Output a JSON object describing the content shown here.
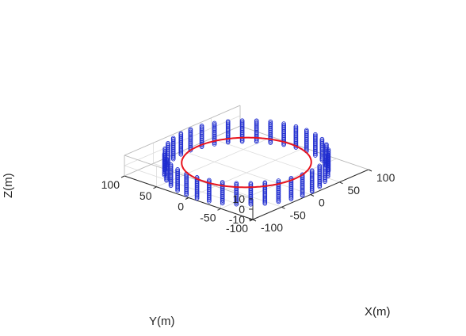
{
  "chart_data": {
    "type": "scatter3d",
    "title": "",
    "grid": true,
    "axes": {
      "x": {
        "label": "X(m)",
        "range": [
          -100,
          100
        ],
        "ticks": [
          -100,
          -50,
          0,
          50,
          100
        ]
      },
      "y": {
        "label": "Y(m)",
        "range": [
          -100,
          100
        ],
        "ticks": [
          -100,
          -50,
          0,
          50,
          100
        ]
      },
      "z": {
        "label": "Z(m)",
        "range": [
          -10,
          10
        ],
        "ticks": [
          -10,
          0,
          10
        ]
      }
    },
    "circle": {
      "color": "#e8141e",
      "center": [
        0,
        0,
        0
      ],
      "radius": 75,
      "z": 0
    },
    "columns": {
      "color": "#1f2ccf",
      "radius": 95,
      "count": 36,
      "z_min": -10,
      "z_max": 10,
      "z_step": 1.25
    }
  }
}
